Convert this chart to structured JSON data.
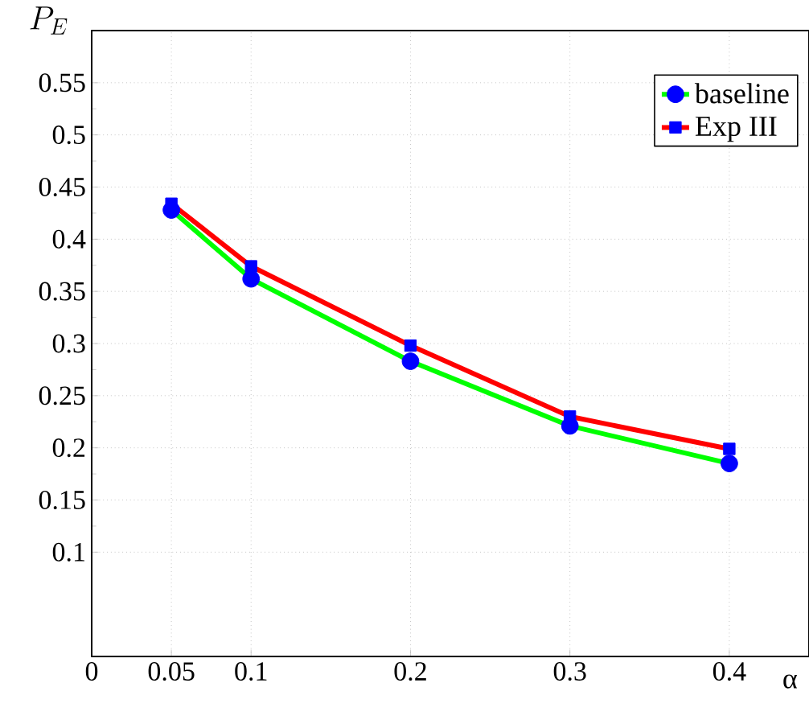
{
  "chart_data": {
    "type": "line",
    "xlabel": "α",
    "ylabel": "P_E",
    "x": [
      0.05,
      0.1,
      0.2,
      0.3,
      0.4
    ],
    "series": [
      {
        "name": "baseline",
        "color": "#00ff00",
        "marker": "circle",
        "values": [
          0.428,
          0.362,
          0.283,
          0.221,
          0.185
        ]
      },
      {
        "name": "Exp III",
        "color": "#ff0000",
        "marker": "square",
        "values": [
          0.434,
          0.374,
          0.298,
          0.23,
          0.199
        ]
      }
    ],
    "xlim": [
      0,
      0.45
    ],
    "ylim": [
      0,
      0.6
    ],
    "xticks": [
      0,
      0.05,
      0.1,
      0.2,
      0.3,
      0.4
    ],
    "yticks": [
      0.1,
      0.15,
      0.2,
      0.25,
      0.3,
      0.35,
      0.4,
      0.45,
      0.5,
      0.55
    ],
    "grid": true,
    "legend": "top right",
    "line_style": "solid"
  }
}
